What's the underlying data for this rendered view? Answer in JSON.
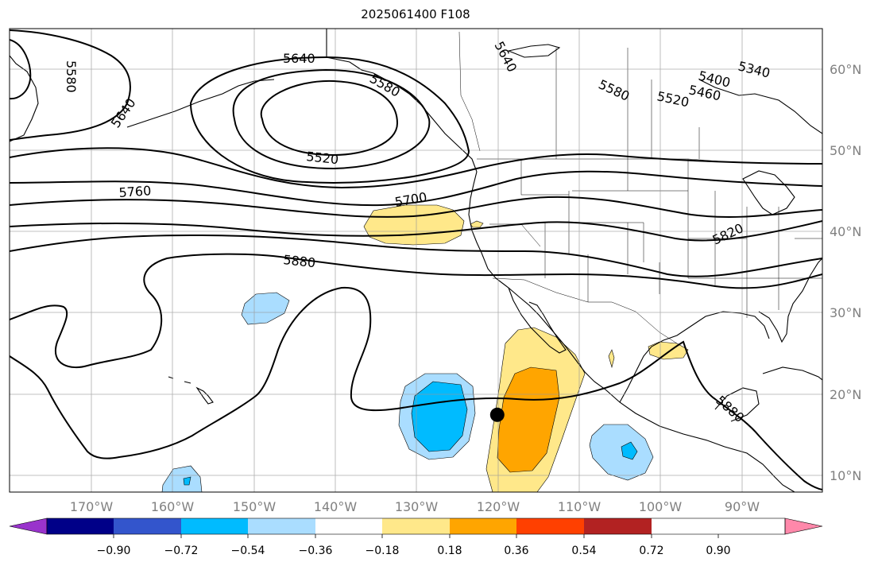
{
  "title": "2025061400 F108",
  "map": {
    "lon_range": [
      180,
      80
    ],
    "lat_range": [
      8,
      65
    ],
    "lon_ticks": [
      "170°W",
      "160°W",
      "150°W",
      "140°W",
      "130°W",
      "120°W",
      "110°W",
      "100°W",
      "90°W"
    ],
    "lat_ticks": [
      "10°N",
      "20°N",
      "30°N",
      "40°N",
      "50°N",
      "60°N"
    ],
    "grid": true,
    "contour_labels": [
      {
        "text": "5640"
      },
      {
        "text": "5580"
      },
      {
        "text": "5640"
      },
      {
        "text": "5520"
      },
      {
        "text": "5760"
      },
      {
        "text": "5700"
      },
      {
        "text": "5880"
      },
      {
        "text": "5640"
      },
      {
        "text": "5580"
      },
      {
        "text": "5520"
      },
      {
        "text": "5460"
      },
      {
        "text": "5400"
      },
      {
        "text": "5340"
      },
      {
        "text": "5820"
      },
      {
        "text": "5880"
      },
      {
        "text": "5580"
      }
    ],
    "marker": {
      "lon": -120,
      "lat": 17.5,
      "label": ""
    }
  },
  "colorbar": {
    "colors": [
      "#9933cc",
      "#000088",
      "#3355cc",
      "#00bbff",
      "#aaddff",
      "#ffffff",
      "#ffe88a",
      "#ffa500",
      "#ff4000",
      "#b22222",
      "#ff88aa"
    ],
    "tick_labels": [
      "−0.90",
      "−0.72",
      "−0.54",
      "−0.36",
      "−0.18",
      "0.18",
      "0.36",
      "0.54",
      "0.72",
      "0.90"
    ]
  }
}
